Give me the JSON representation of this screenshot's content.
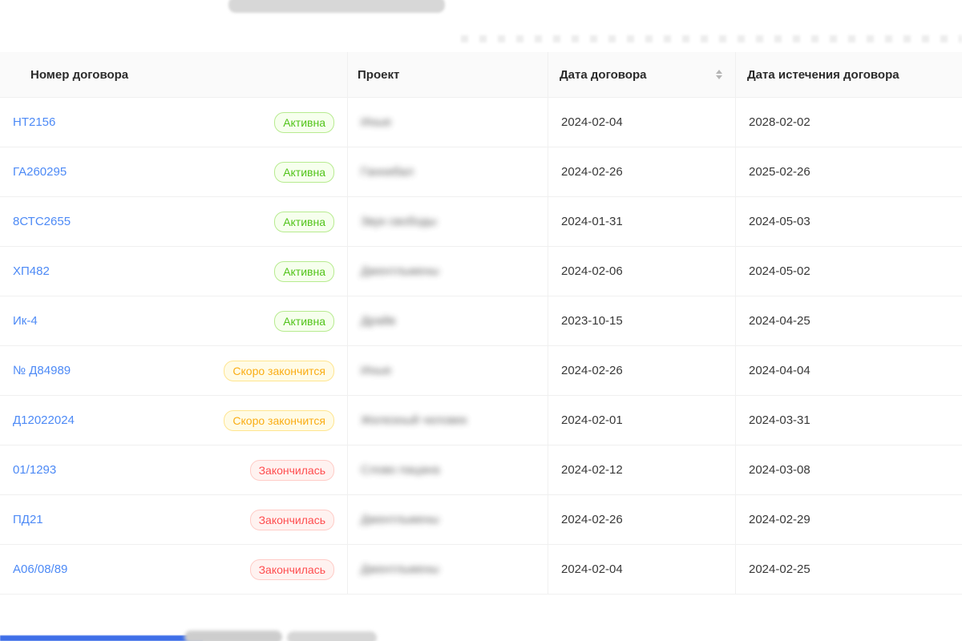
{
  "colors": {
    "link": "#4d8af6",
    "header_bg": "#fafafa",
    "border": "#f0f0f0",
    "accent_bar": "#3f6fe8"
  },
  "table": {
    "columns": {
      "number": "Номер договора",
      "project": "Проект",
      "date": "Дата договора",
      "expiry": "Дата истечения договора"
    },
    "statuses": {
      "active": {
        "label": "Активна",
        "text": "#52c41a",
        "bg": "#f6ffed",
        "border": "#b7eb8f"
      },
      "ending": {
        "label": "Скоро закончится",
        "text": "#faad14",
        "bg": "#fffbe6",
        "border": "#ffe58f"
      },
      "ended": {
        "label": "Закончилась",
        "text": "#ff4d4f",
        "bg": "#fff2f0",
        "border": "#ffccc7"
      }
    },
    "rows": [
      {
        "number": "НТ2156",
        "status": "active",
        "project": "Иные",
        "date": "2024-02-04",
        "expiry": "2028-02-02"
      },
      {
        "number": "ГА260295",
        "status": "active",
        "project": "Ганнибал",
        "date": "2024-02-26",
        "expiry": "2025-02-26"
      },
      {
        "number": "8СТС2655",
        "status": "active",
        "project": "Звук свободы",
        "date": "2024-01-31",
        "expiry": "2024-05-03"
      },
      {
        "number": "ХП482",
        "status": "active",
        "project": "Джентльмены",
        "date": "2024-02-06",
        "expiry": "2024-05-02"
      },
      {
        "number": "Ик-4",
        "status": "active",
        "project": "Драйв",
        "date": "2023-10-15",
        "expiry": "2024-04-25"
      },
      {
        "number": "№ Д84989",
        "status": "ending",
        "project": "Иные",
        "date": "2024-02-26",
        "expiry": "2024-04-04"
      },
      {
        "number": "Д12022024",
        "status": "ending",
        "project": "Железный человек",
        "date": "2024-02-01",
        "expiry": "2024-03-31"
      },
      {
        "number": "01/1293",
        "status": "ended",
        "project": "Слово пацана",
        "date": "2024-02-12",
        "expiry": "2024-03-08"
      },
      {
        "number": "ПД21",
        "status": "ended",
        "project": "Джентльмены",
        "date": "2024-02-26",
        "expiry": "2024-02-29"
      },
      {
        "number": "А06/08/89",
        "status": "ended",
        "project": "Джентльмены",
        "date": "2024-02-04",
        "expiry": "2024-02-25"
      }
    ]
  }
}
